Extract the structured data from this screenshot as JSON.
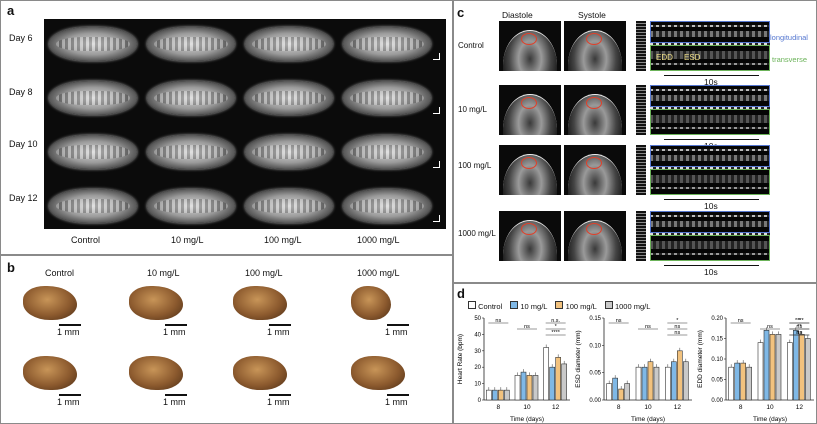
{
  "panel_a": {
    "label": "a",
    "rows": [
      "Day 6",
      "Day 8",
      "Day 10",
      "Day 12"
    ],
    "cols": [
      "Control",
      "10 mg/L",
      "100 mg/L",
      "1000 mg/L"
    ]
  },
  "panel_b": {
    "label": "b",
    "cols": [
      "Control",
      "10 mg/L",
      "100 mg/L",
      "1000 mg/L"
    ],
    "scale": "1 mm"
  },
  "panel_c": {
    "label": "c",
    "diastole": "Diastole",
    "systole": "Systole",
    "rows": [
      "Control",
      "10 mg/L",
      "100 mg/L",
      "1000 mg/L"
    ],
    "longitudinal": "longitudinal",
    "transverse": "transverse",
    "edd": "EDD",
    "esd": "ESD",
    "time": "10s"
  },
  "panel_d": {
    "label": "d",
    "legend": [
      "Control",
      "10 mg/L",
      "100 mg/L",
      "1000 mg/L"
    ],
    "colors": {
      "Control": "#ffffff",
      "10 mg/L": "#7fb8e6",
      "100 mg/L": "#f2c27e",
      "1000 mg/L": "#c9c9c9"
    },
    "xlabel": "Time (days)"
  },
  "chart_data": [
    {
      "type": "bar",
      "ylabel": "Heart Rate (bpm)",
      "xlabel": "Time (days)",
      "categories": [
        "8",
        "10",
        "12"
      ],
      "ylim": [
        0,
        50
      ],
      "yticks": [
        0,
        10,
        20,
        30,
        40,
        50
      ],
      "series": [
        {
          "name": "Control",
          "values": [
            6,
            15,
            32
          ]
        },
        {
          "name": "10 mg/L",
          "values": [
            6,
            17,
            20
          ]
        },
        {
          "name": "100 mg/L",
          "values": [
            6,
            15,
            26
          ]
        },
        {
          "name": "1000 mg/L",
          "values": [
            6,
            15,
            22
          ]
        }
      ],
      "annotations": [
        "ns",
        "ns",
        "****",
        "n.s.",
        "*"
      ]
    },
    {
      "type": "bar",
      "ylabel": "ESD diameter (mm)",
      "xlabel": "Time (days)",
      "categories": [
        "8",
        "10",
        "12"
      ],
      "ylim": [
        0,
        0.15
      ],
      "yticks": [
        0.0,
        0.05,
        0.1,
        0.15
      ],
      "series": [
        {
          "name": "Control",
          "values": [
            0.03,
            0.06,
            0.06
          ]
        },
        {
          "name": "10 mg/L",
          "values": [
            0.04,
            0.06,
            0.07
          ]
        },
        {
          "name": "100 mg/L",
          "values": [
            0.02,
            0.07,
            0.09
          ]
        },
        {
          "name": "1000 mg/L",
          "values": [
            0.03,
            0.06,
            0.07
          ]
        }
      ],
      "annotations": [
        "ns",
        "ns",
        "ns",
        "*",
        "ns"
      ]
    },
    {
      "type": "bar",
      "ylabel": "EDD diameter (mm)",
      "xlabel": "Time (days)",
      "categories": [
        "8",
        "10",
        "12"
      ],
      "ylim": [
        0,
        0.2
      ],
      "yticks": [
        0.0,
        0.05,
        0.1,
        0.15,
        0.2
      ],
      "series": [
        {
          "name": "Control",
          "values": [
            0.08,
            0.14,
            0.14
          ]
        },
        {
          "name": "10 mg/L",
          "values": [
            0.09,
            0.17,
            0.17
          ]
        },
        {
          "name": "100 mg/L",
          "values": [
            0.09,
            0.16,
            0.16
          ]
        },
        {
          "name": "1000 mg/L",
          "values": [
            0.08,
            0.16,
            0.15
          ]
        }
      ],
      "annotations": [
        "ns",
        "ns",
        "ns",
        "*",
        "ns",
        "ns",
        "****",
        "**"
      ]
    }
  ]
}
